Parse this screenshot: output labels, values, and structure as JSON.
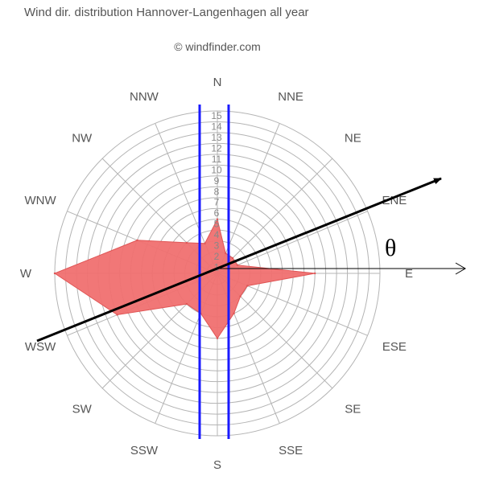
{
  "title": "Wind dir. distribution Hannover-Langenhagen all year",
  "credit": "© windfinder.com",
  "annotation": {
    "angle_symbol": "θ"
  },
  "colors": {
    "rose_fill": "#f07070",
    "rose_stroke": "#e05555",
    "grid": "#b4b4b4",
    "band_lines": "#1a1aff",
    "arrow": "#000000"
  },
  "chart_data": {
    "type": "radar",
    "title": "Wind dir. distribution Hannover-Langenhagen all year",
    "directions": [
      "N",
      "NNE",
      "NE",
      "ENE",
      "E",
      "ESE",
      "SE",
      "SSE",
      "S",
      "SSW",
      "SW",
      "WSW",
      "W",
      "WNW",
      "NW",
      "NNW"
    ],
    "ring_labels": [
      "1",
      "2",
      "3",
      "4",
      "5",
      "6",
      "7",
      "8",
      "9",
      "10",
      "11",
      "12",
      "13",
      "14",
      "15"
    ],
    "rmax": 15,
    "values_percent": [
      5,
      2,
      2,
      2,
      9,
      3,
      3,
      4,
      6,
      4,
      4,
      10,
      15,
      8,
      4,
      3
    ]
  }
}
